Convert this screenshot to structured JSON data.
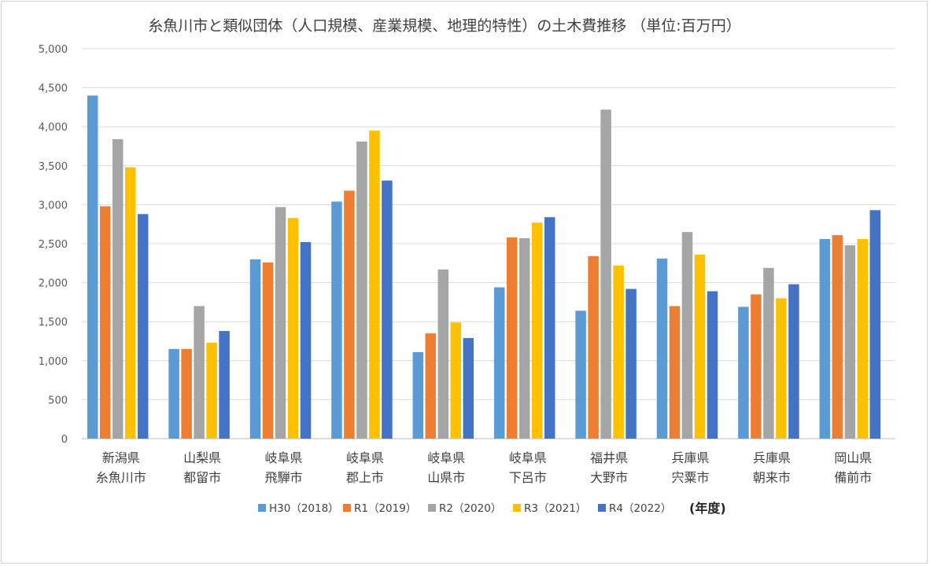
{
  "chart_data": {
    "type": "bar",
    "title": "糸魚川市と類似団体（人口規模、産業規模、地理的特性）の土木費推移 （単位:百万円）",
    "categories": [
      [
        "新潟県",
        "糸魚川市"
      ],
      [
        "山梨県",
        "都留市"
      ],
      [
        "岐阜県",
        "飛騨市"
      ],
      [
        "岐阜県",
        "郡上市"
      ],
      [
        "岐阜県",
        "山県市"
      ],
      [
        "岐阜県",
        "下呂市"
      ],
      [
        "福井県",
        "大野市"
      ],
      [
        "兵庫県",
        "宍粟市"
      ],
      [
        "兵庫県",
        "朝来市"
      ],
      [
        "岡山県",
        "備前市"
      ]
    ],
    "series": [
      {
        "name": "H30（2018）",
        "color": "#5B9BD5",
        "values": [
          4400,
          1150,
          2300,
          3040,
          1110,
          1940,
          1640,
          2310,
          1690,
          2560
        ]
      },
      {
        "name": "R1（2019）",
        "color": "#ED7D31",
        "values": [
          2980,
          1150,
          2260,
          3180,
          1350,
          2580,
          2340,
          1700,
          1850,
          2610
        ]
      },
      {
        "name": "R2（2020）",
        "color": "#A5A5A5",
        "values": [
          3840,
          1700,
          2970,
          3810,
          2170,
          2570,
          4220,
          2650,
          2190,
          2480
        ]
      },
      {
        "name": "R3（2021）",
        "color": "#FFC000",
        "values": [
          3480,
          1230,
          2830,
          3950,
          1490,
          2770,
          2220,
          2360,
          1800,
          2560
        ]
      },
      {
        "name": "R4（2022）",
        "color": "#4472C4",
        "values": [
          2880,
          1380,
          2520,
          3310,
          1290,
          2840,
          1920,
          1890,
          1980,
          2930
        ]
      }
    ],
    "y_ticks": [
      "0",
      "500",
      "1,000",
      "1,500",
      "2,000",
      "2,500",
      "3,000",
      "3,500",
      "4,000",
      "4,500",
      "5,000"
    ],
    "ylim": [
      0,
      5000
    ],
    "grid": true,
    "legend_position": "bottom",
    "legend_suffix": "(年度)"
  }
}
